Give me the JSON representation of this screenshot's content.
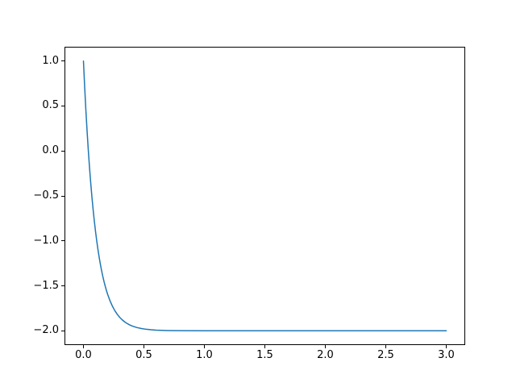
{
  "figure": {
    "background_color": "#ffffff",
    "spine_color": "#000000",
    "tick_label_color": "#000000"
  },
  "chart_data": {
    "type": "line",
    "title": "",
    "xlabel": "",
    "ylabel": "",
    "grid": false,
    "legend": null,
    "xlim": [
      -0.15,
      3.15
    ],
    "ylim": [
      -2.15,
      1.15
    ],
    "x_ticks": [
      0.0,
      0.5,
      1.0,
      1.5,
      2.0,
      2.5,
      3.0
    ],
    "x_tick_labels": [
      "0.0",
      "0.5",
      "1.0",
      "1.5",
      "2.0",
      "2.5",
      "3.0"
    ],
    "y_ticks": [
      1.0,
      0.5,
      0.0,
      -0.5,
      -1.0,
      -1.5,
      -2.0
    ],
    "y_tick_labels": [
      "1.0",
      "0.5",
      "0.0",
      "−0.5",
      "−1.0",
      "−1.5",
      "−2.0"
    ],
    "series": [
      {
        "name": "series-0",
        "color": "#1f77b4",
        "linewidth": 1.5,
        "x": [
          0,
          0.01,
          0.02,
          0.03,
          0.04,
          0.05,
          0.06,
          0.07,
          0.08,
          0.09,
          0.1,
          0.11,
          0.12,
          0.13,
          0.14,
          0.15,
          0.16,
          0.17,
          0.18,
          0.19,
          0.2,
          0.22,
          0.24,
          0.26,
          0.28,
          0.3,
          0.32,
          0.34,
          0.36,
          0.38,
          0.4,
          0.44,
          0.48,
          0.52,
          0.56,
          0.6,
          0.7,
          0.8,
          1.0,
          1.25,
          1.5,
          1.75,
          2.0,
          2.25,
          2.5,
          2.75,
          3.0
        ],
        "y": [
          1.0,
          0.7145,
          0.4562,
          0.2225,
          0.011,
          -0.1804,
          -0.3536,
          -0.5102,
          -0.652,
          -0.7803,
          -0.8964,
          -1.0014,
          -1.0964,
          -1.1824,
          -1.2602,
          -1.3306,
          -1.3943,
          -1.4519,
          -1.5041,
          -1.5513,
          -1.594,
          -1.6676,
          -1.7278,
          -1.7772,
          -1.8176,
          -1.8506,
          -1.8777,
          -1.8999,
          -1.918,
          -1.9329,
          -1.9451,
          -1.9632,
          -1.9753,
          -1.9835,
          -1.9889,
          -1.9926,
          -1.9973,
          -1.999,
          -1.9999,
          -2.0,
          -2.0,
          -2.0,
          -2.0,
          -2.0,
          -2.0,
          -2.0,
          -2.0
        ]
      }
    ]
  }
}
